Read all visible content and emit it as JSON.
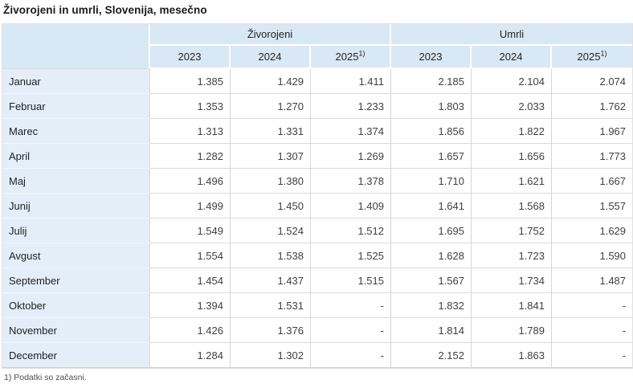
{
  "title": "Živorojeni in umrli, Slovenija, mesečno",
  "footnote": "1) Podatki so začasni.",
  "colors": {
    "header_background": "#d9e8f5",
    "stub_background": "#e4eef8",
    "grid_border": "#d7d7d7",
    "title_text": "#1a1a1a",
    "value_text": "#404040"
  },
  "table": {
    "groups": [
      {
        "label": "Živorojeni"
      },
      {
        "label": "Umrli"
      }
    ],
    "year_headers": [
      {
        "label": "2023",
        "sup": ""
      },
      {
        "label": "2024",
        "sup": ""
      },
      {
        "label": "2025",
        "sup": "1)"
      },
      {
        "label": "2023",
        "sup": ""
      },
      {
        "label": "2024",
        "sup": ""
      },
      {
        "label": "2025",
        "sup": "1)"
      }
    ],
    "rows": [
      {
        "month": "Januar",
        "values": [
          "1.385",
          "1.429",
          "1.411",
          "2.185",
          "2.104",
          "2.074"
        ]
      },
      {
        "month": "Februar",
        "values": [
          "1.353",
          "1.270",
          "1.233",
          "1.803",
          "2.033",
          "1.762"
        ]
      },
      {
        "month": "Marec",
        "values": [
          "1.313",
          "1.331",
          "1.374",
          "1.856",
          "1.822",
          "1.967"
        ]
      },
      {
        "month": "April",
        "values": [
          "1.282",
          "1.307",
          "1.269",
          "1.657",
          "1.656",
          "1.773"
        ]
      },
      {
        "month": "Maj",
        "values": [
          "1.496",
          "1.380",
          "1.378",
          "1.710",
          "1.621",
          "1.667"
        ]
      },
      {
        "month": "Junij",
        "values": [
          "1.499",
          "1.450",
          "1.409",
          "1.641",
          "1.568",
          "1.557"
        ]
      },
      {
        "month": "Julij",
        "values": [
          "1.549",
          "1.524",
          "1.512",
          "1.695",
          "1.752",
          "1.629"
        ]
      },
      {
        "month": "Avgust",
        "values": [
          "1.554",
          "1.538",
          "1.525",
          "1.628",
          "1.723",
          "1.590"
        ]
      },
      {
        "month": "September",
        "values": [
          "1.454",
          "1.437",
          "1.515",
          "1.567",
          "1.734",
          "1.487"
        ]
      },
      {
        "month": "Oktober",
        "values": [
          "1.394",
          "1.531",
          "-",
          "1.832",
          "1.841",
          "-"
        ]
      },
      {
        "month": "November",
        "values": [
          "1.426",
          "1.376",
          "-",
          "1.814",
          "1.789",
          "-"
        ]
      },
      {
        "month": "December",
        "values": [
          "1.284",
          "1.302",
          "-",
          "2.152",
          "1.863",
          "-"
        ]
      }
    ]
  },
  "chart_data": {
    "type": "table",
    "title": "Živorojeni in umrli, Slovenija, mesečno",
    "column_groups": [
      "Živorojeni",
      "Umrli"
    ],
    "columns": [
      "Živorojeni 2023",
      "Živorojeni 2024",
      "Živorojeni 2025",
      "Umrli 2023",
      "Umrli 2024",
      "Umrli 2025"
    ],
    "categories": [
      "Januar",
      "Februar",
      "Marec",
      "April",
      "Maj",
      "Junij",
      "Julij",
      "Avgust",
      "September",
      "Oktober",
      "November",
      "December"
    ],
    "series": [
      {
        "name": "Živorojeni 2023",
        "values": [
          1385,
          1353,
          1313,
          1282,
          1496,
          1499,
          1549,
          1554,
          1454,
          1394,
          1426,
          1284
        ]
      },
      {
        "name": "Živorojeni 2024",
        "values": [
          1429,
          1270,
          1331,
          1307,
          1380,
          1450,
          1524,
          1538,
          1437,
          1531,
          1376,
          1302
        ]
      },
      {
        "name": "Živorojeni 2025",
        "values": [
          1411,
          1233,
          1374,
          1269,
          1378,
          1409,
          1512,
          1525,
          1515,
          null,
          null,
          null
        ]
      },
      {
        "name": "Umrli 2023",
        "values": [
          2185,
          1803,
          1856,
          1657,
          1710,
          1641,
          1695,
          1628,
          1567,
          1832,
          1814,
          2152
        ]
      },
      {
        "name": "Umrli 2024",
        "values": [
          2104,
          2033,
          1822,
          1656,
          1621,
          1568,
          1752,
          1723,
          1734,
          1841,
          1789,
          1863
        ]
      },
      {
        "name": "Umrli 2025",
        "values": [
          2074,
          1762,
          1967,
          1773,
          1667,
          1557,
          1629,
          1590,
          1487,
          null,
          null,
          null
        ]
      }
    ],
    "number_format": "thousands separator shown as dot (e.g. 1.385 = 1385)",
    "missing_value_symbol": "-",
    "footnote": "1) Podatki so začasni."
  }
}
